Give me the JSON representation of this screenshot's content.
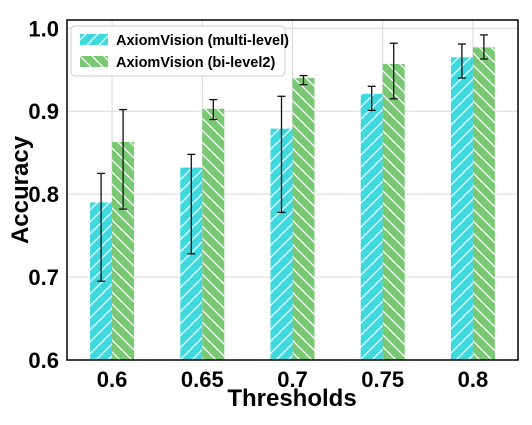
{
  "chart_data": {
    "type": "bar",
    "title": "",
    "xlabel": "Thresholds",
    "ylabel": "Accuracy",
    "categories": [
      "0.6",
      "0.65",
      "0.7",
      "0.75",
      "0.8"
    ],
    "ylim": [
      0.6,
      1.01
    ],
    "yticks": [
      "0.6",
      "0.7",
      "0.8",
      "0.9",
      "1.0"
    ],
    "grid": true,
    "legend_position": "top-left",
    "series": [
      {
        "name": "AxiomVision (multi-level)",
        "color": "#3ed8df",
        "hatch": "diagonal",
        "values": [
          0.79,
          0.832,
          0.879,
          0.921,
          0.965
        ],
        "err_low": [
          0.695,
          0.728,
          0.778,
          0.901,
          0.94
        ],
        "err_high": [
          0.825,
          0.848,
          0.918,
          0.93,
          0.981
        ]
      },
      {
        "name": "AxiomVision (bi-level2)",
        "color": "#79c873",
        "hatch": "backdiagonal",
        "values": [
          0.863,
          0.903,
          0.94,
          0.957,
          0.977
        ],
        "err_low": [
          0.782,
          0.89,
          0.932,
          0.915,
          0.963
        ],
        "err_high": [
          0.902,
          0.914,
          0.943,
          0.982,
          0.992
        ]
      }
    ]
  }
}
